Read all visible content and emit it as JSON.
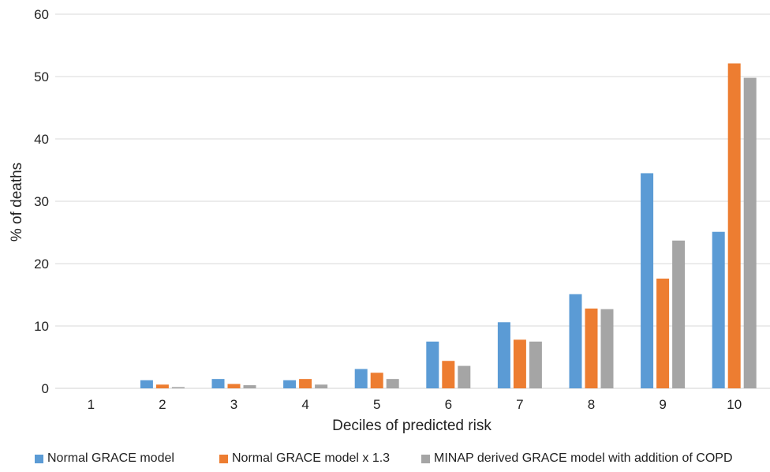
{
  "chart_data": {
    "type": "bar",
    "title": "",
    "xlabel": "Deciles of predicted risk",
    "ylabel": "% of deaths",
    "ylim": [
      0,
      60
    ],
    "yticks": [
      0,
      10,
      20,
      30,
      40,
      50,
      60
    ],
    "grid": true,
    "legend_position": "bottom",
    "categories": [
      "1",
      "2",
      "3",
      "4",
      "5",
      "6",
      "7",
      "8",
      "9",
      "10"
    ],
    "series": [
      {
        "name": "Normal GRACE model",
        "color": "#5B9BD5",
        "values": [
          0,
          1.3,
          1.5,
          1.3,
          3.1,
          7.5,
          10.6,
          15.1,
          34.5,
          25.1
        ]
      },
      {
        "name": "Normal GRACE model x 1.3",
        "color": "#ED7D31",
        "values": [
          0,
          0.6,
          0.7,
          1.5,
          2.5,
          4.4,
          7.8,
          12.8,
          17.6,
          52.1
        ]
      },
      {
        "name": "MINAP derived GRACE model with addition of COPD",
        "color": "#A5A5A5",
        "values": [
          0,
          0.2,
          0.5,
          0.6,
          1.5,
          3.6,
          7.5,
          12.7,
          23.7,
          49.8
        ]
      }
    ],
    "gridline_color": "#D9D9D9"
  }
}
